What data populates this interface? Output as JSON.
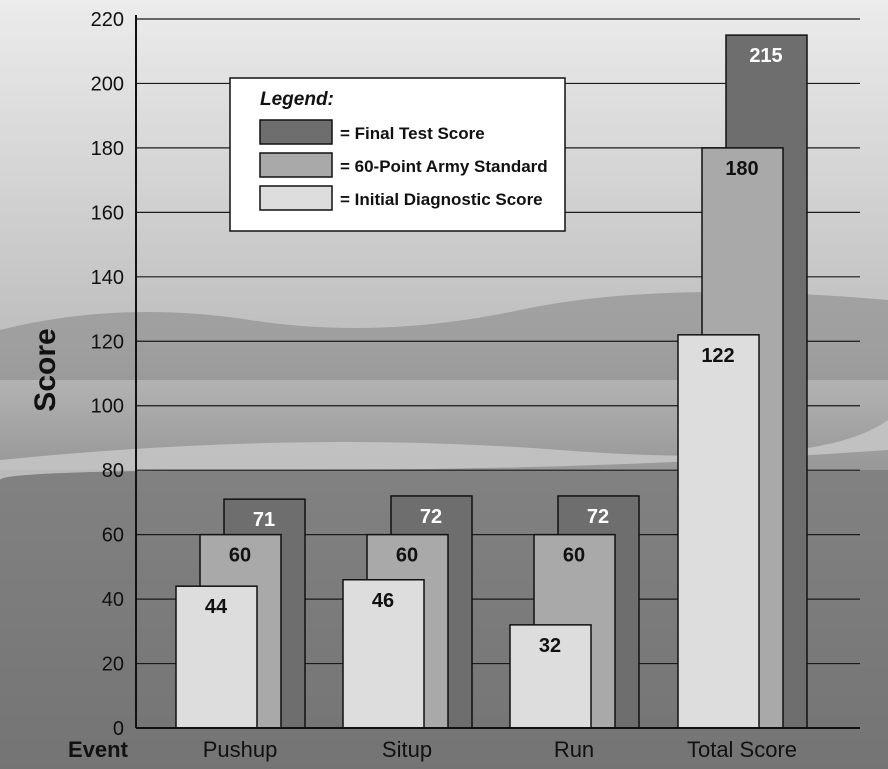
{
  "chart_data": {
    "type": "bar",
    "title": "",
    "xlabel": "Event",
    "ylabel": "Score",
    "ylim": [
      0,
      220
    ],
    "yticks": [
      0,
      20,
      40,
      60,
      80,
      100,
      120,
      140,
      160,
      180,
      200,
      220
    ],
    "grid": true,
    "legend_title": "Legend:",
    "legend_position": "top-left",
    "categories": [
      "Pushup",
      "Situp",
      "Run",
      "Total Score"
    ],
    "series": [
      {
        "name": "= Final Test Score",
        "values": [
          71,
          72,
          72,
          215
        ],
        "color": "#6e6e6e",
        "label_color": "#ffffff"
      },
      {
        "name": "= 60-Point Army Standard",
        "values": [
          60,
          60,
          60,
          180
        ],
        "color": "#a9a9a9",
        "label_color": "#111111"
      },
      {
        "name": "= Initial Diagnostic Score",
        "values": [
          44,
          46,
          32,
          122
        ],
        "color": "#dddddd",
        "label_color": "#111111"
      }
    ]
  }
}
